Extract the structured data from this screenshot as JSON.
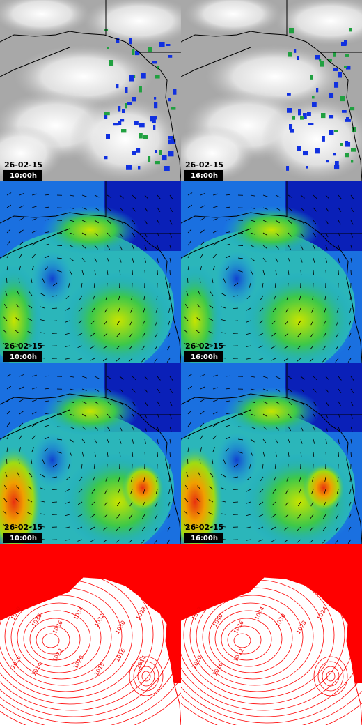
{
  "rows": [
    {
      "panels": [
        {
          "date": "26-02-15",
          "time": "10:00h"
        },
        {
          "date": "26-02-15",
          "time": "16:00h"
        }
      ]
    },
    {
      "panels": [
        {
          "date": "26-02-15",
          "time": "10:00h"
        },
        {
          "date": "26-02-15",
          "time": "16:00h"
        }
      ]
    },
    {
      "panels": [
        {
          "date": "26-02-15",
          "time": "10:00h"
        },
        {
          "date": "26-02-15",
          "time": "16:00h"
        }
      ]
    },
    {
      "panels": [
        {
          "isobar_labels": [
            "1040",
            "1038",
            "1036",
            "1034",
            "1032",
            "1030",
            "1028",
            "1026",
            "1024",
            "1022",
            "1020",
            "1018",
            "1016",
            "1014"
          ]
        },
        {
          "isobar_labels": [
            "1042",
            "1040",
            "1036",
            "1034",
            "1030",
            "1028",
            "1024",
            "1020",
            "1016",
            "1012"
          ]
        }
      ]
    }
  ]
}
